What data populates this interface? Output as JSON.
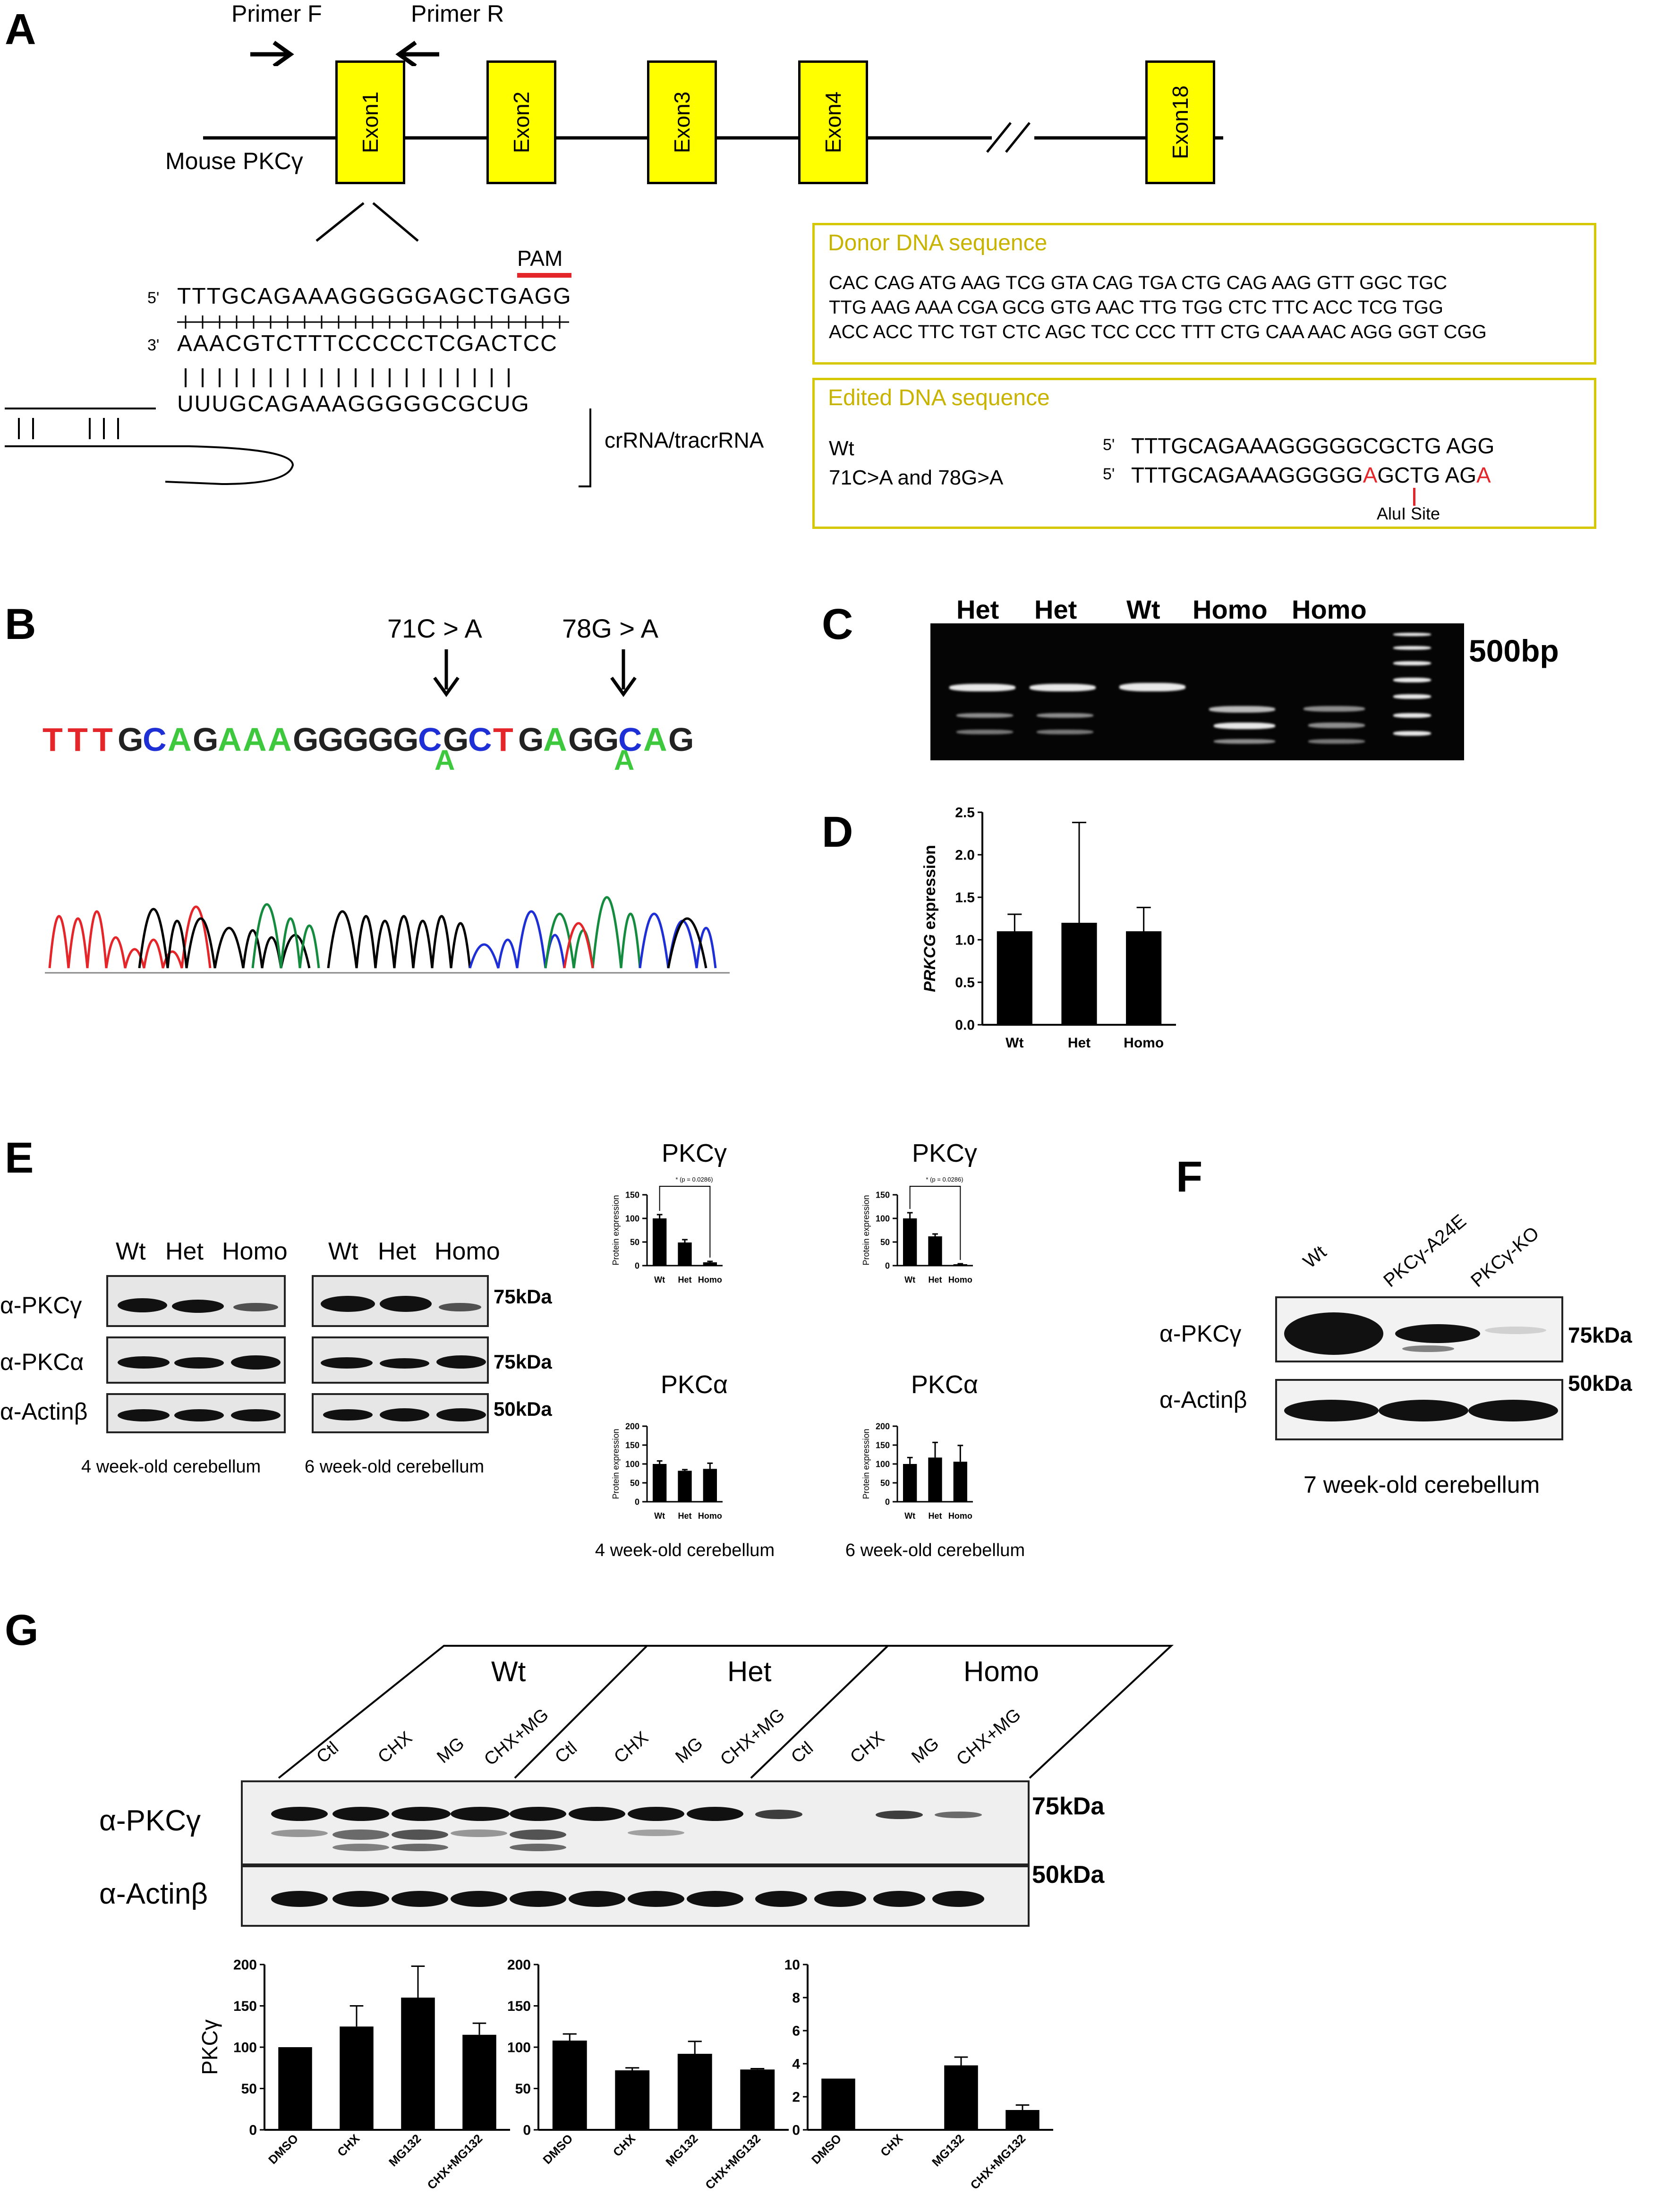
{
  "panels": {
    "A": "A",
    "B": "B",
    "C": "C",
    "D": "D",
    "E": "E",
    "F": "F",
    "G": "G"
  },
  "panelA": {
    "primer_f": "Primer F",
    "primer_r": "Primer R",
    "gene_label": "Mouse PKCγ",
    "exons": [
      "Exon1",
      "Exon2",
      "Exon3",
      "Exon4",
      "Exon18"
    ],
    "pam": "PAM",
    "strand5": "5'",
    "strand3": "3'",
    "seq_top": "TTTGCAGAAAGGGGGAGCTGAGG",
    "seq_bottom": "AAACGTCTTTCCCCCTCGACTCC",
    "seq_rna": "UUUGCAGAAAGGGGGCGCUG",
    "crrna": "crRNA/tracrRNA",
    "donor_title": "Donor DNA sequence",
    "donor_lines": [
      "CAC CAG ATG AAG TCG GTA CAG TGA CTG CAG AAG GTT GGC TGC",
      "TTG AAG AAA CGA GCG GTG AAC TTG TGG CTC TTC ACC TCG TGG",
      "ACC ACC TTC TGT CTC AGC TCC CCC TTT CTG CAA AAC AGG GGT CGG"
    ],
    "edited_title": "Edited DNA sequence",
    "wt_label": "Wt",
    "mut_label": "71C>A and 78G>A",
    "wt_seq": "TTTGCAGAAAGGGGGCGCTG AGG",
    "mut_seq_a": "TTTGCAGAAAGGGGG",
    "mut_seq_b": "A",
    "mut_seq_c": "GCTG AG",
    "mut_seq_d": "A",
    "alui": "AluI Site"
  },
  "panelB": {
    "mut1": "71C > A",
    "mut2": "78G > A",
    "sequence": [
      "T",
      "T",
      "T",
      "G",
      "C",
      "A",
      "G",
      "A",
      "A",
      "A",
      "G",
      "G",
      "G",
      "G",
      "G",
      "C",
      "G",
      "C",
      "T",
      "G",
      "A",
      "G",
      "G",
      "C",
      "A",
      "G"
    ],
    "sub1": "A",
    "sub2": "A"
  },
  "panelC": {
    "lanes": [
      "Het",
      "Het",
      "Wt",
      "Homo",
      "Homo"
    ],
    "marker": "500bp"
  },
  "panelE": {
    "blot_lanes": [
      "Wt",
      "Het",
      "Homo"
    ],
    "row_labels": [
      "α-PKCγ",
      "α-PKCα",
      "α-Actinβ"
    ],
    "sizes": [
      "75kDa",
      "75kDa",
      "50kDa"
    ],
    "caption_4wk": "4 week-old cerebellum",
    "caption_6wk": "6 week-old cerebellum"
  },
  "panelF": {
    "lanes": [
      "Wt",
      "PKCγ-A24E",
      "PKCγ-KO"
    ],
    "row_labels": [
      "α-PKCγ",
      "α-Actinβ"
    ],
    "sizes": [
      "75kDa",
      "50kDa"
    ],
    "caption": "7 week-old cerebellum"
  },
  "panelG": {
    "groups": [
      "Wt",
      "Het",
      "Homo"
    ],
    "lanes": [
      "Ctl",
      "CHX",
      "MG",
      "CHX+MG",
      "Ctl",
      "CHX",
      "MG",
      "CHX+MG",
      "Ctl",
      "CHX",
      "MG",
      "CHX+MG"
    ],
    "row_labels": [
      "α-PKCγ",
      "α-Actinβ"
    ],
    "sizes": [
      "75kDa",
      "50kDa"
    ],
    "ylabel": "PKCγ"
  },
  "chart_data": [
    {
      "id": "D",
      "type": "bar",
      "categories": [
        "Wt",
        "Het",
        "Homo"
      ],
      "values": [
        1.1,
        1.2,
        1.1
      ],
      "errors": [
        0.2,
        1.18,
        0.28
      ],
      "ylabel": "PRKCG expression",
      "ylim": [
        0,
        2.5
      ],
      "yticks": [
        "0.0",
        "0.5",
        "1.0",
        "1.5",
        "2.0",
        "2.5"
      ]
    },
    {
      "id": "E1",
      "type": "bar",
      "title": "PKCγ",
      "categories": [
        "Wt",
        "Het",
        "Homo"
      ],
      "values": [
        100,
        49,
        7
      ],
      "errors": [
        8,
        6,
        2
      ],
      "ylabel": "Protein expression",
      "ylim": [
        0,
        150
      ],
      "yticks": [
        "0",
        "50",
        "100",
        "150"
      ],
      "annotation": "*   (p = 0.0286)"
    },
    {
      "id": "E2",
      "type": "bar",
      "title": "PKCγ",
      "categories": [
        "Wt",
        "Het",
        "Homo"
      ],
      "values": [
        100,
        62,
        3
      ],
      "errors": [
        12,
        5,
        1
      ],
      "ylabel": "Protein expression",
      "ylim": [
        0,
        150
      ],
      "yticks": [
        "0",
        "50",
        "100",
        "150"
      ],
      "annotation": "*   (p = 0.0286)",
      "caption": ""
    },
    {
      "id": "E3",
      "type": "bar",
      "title": "PKCα",
      "categories": [
        "Wt",
        "Het",
        "Homo"
      ],
      "values": [
        100,
        82,
        87
      ],
      "errors": [
        8,
        3,
        15
      ],
      "ylabel": "Protein expression",
      "ylim": [
        0,
        200
      ],
      "yticks": [
        "0",
        "50",
        "100",
        "150",
        "200"
      ],
      "caption": "4 week-old cerebellum"
    },
    {
      "id": "E4",
      "type": "bar",
      "title": "PKCα",
      "categories": [
        "Wt",
        "Het",
        "Homo"
      ],
      "values": [
        100,
        117,
        106
      ],
      "errors": [
        17,
        40,
        43
      ],
      "ylabel": "Protein expression",
      "ylim": [
        0,
        200
      ],
      "yticks": [
        "0",
        "50",
        "100",
        "150",
        "200"
      ],
      "caption": "6 week-old cerebellum"
    },
    {
      "id": "G1",
      "type": "bar",
      "categories": [
        "DMSO",
        "CHX",
        "MG132",
        "CHX+MG132"
      ],
      "values": [
        100,
        125,
        160,
        115
      ],
      "errors": [
        0,
        25,
        38,
        14
      ],
      "ylabel": "PKCγ",
      "ylim": [
        0,
        200
      ],
      "yticks": [
        "0",
        "50",
        "100",
        "150",
        "200"
      ]
    },
    {
      "id": "G2",
      "type": "bar",
      "categories": [
        "DMSO",
        "CHX",
        "MG132",
        "CHX+MG132"
      ],
      "values": [
        108,
        72,
        92,
        73
      ],
      "errors": [
        8,
        3,
        15,
        1
      ],
      "ylabel": "",
      "ylim": [
        0,
        200
      ],
      "yticks": [
        "0",
        "50",
        "100",
        "150",
        "200"
      ]
    },
    {
      "id": "G3",
      "type": "bar",
      "categories": [
        "DMSO",
        "CHX",
        "MG132",
        "CHX+MG132"
      ],
      "values": [
        3.1,
        0,
        3.9,
        1.2
      ],
      "errors": [
        0,
        0,
        0.5,
        0.3
      ],
      "ylabel": "",
      "ylim": [
        0,
        10
      ],
      "yticks": [
        "0",
        "2",
        "4",
        "6",
        "8",
        "10"
      ]
    }
  ]
}
